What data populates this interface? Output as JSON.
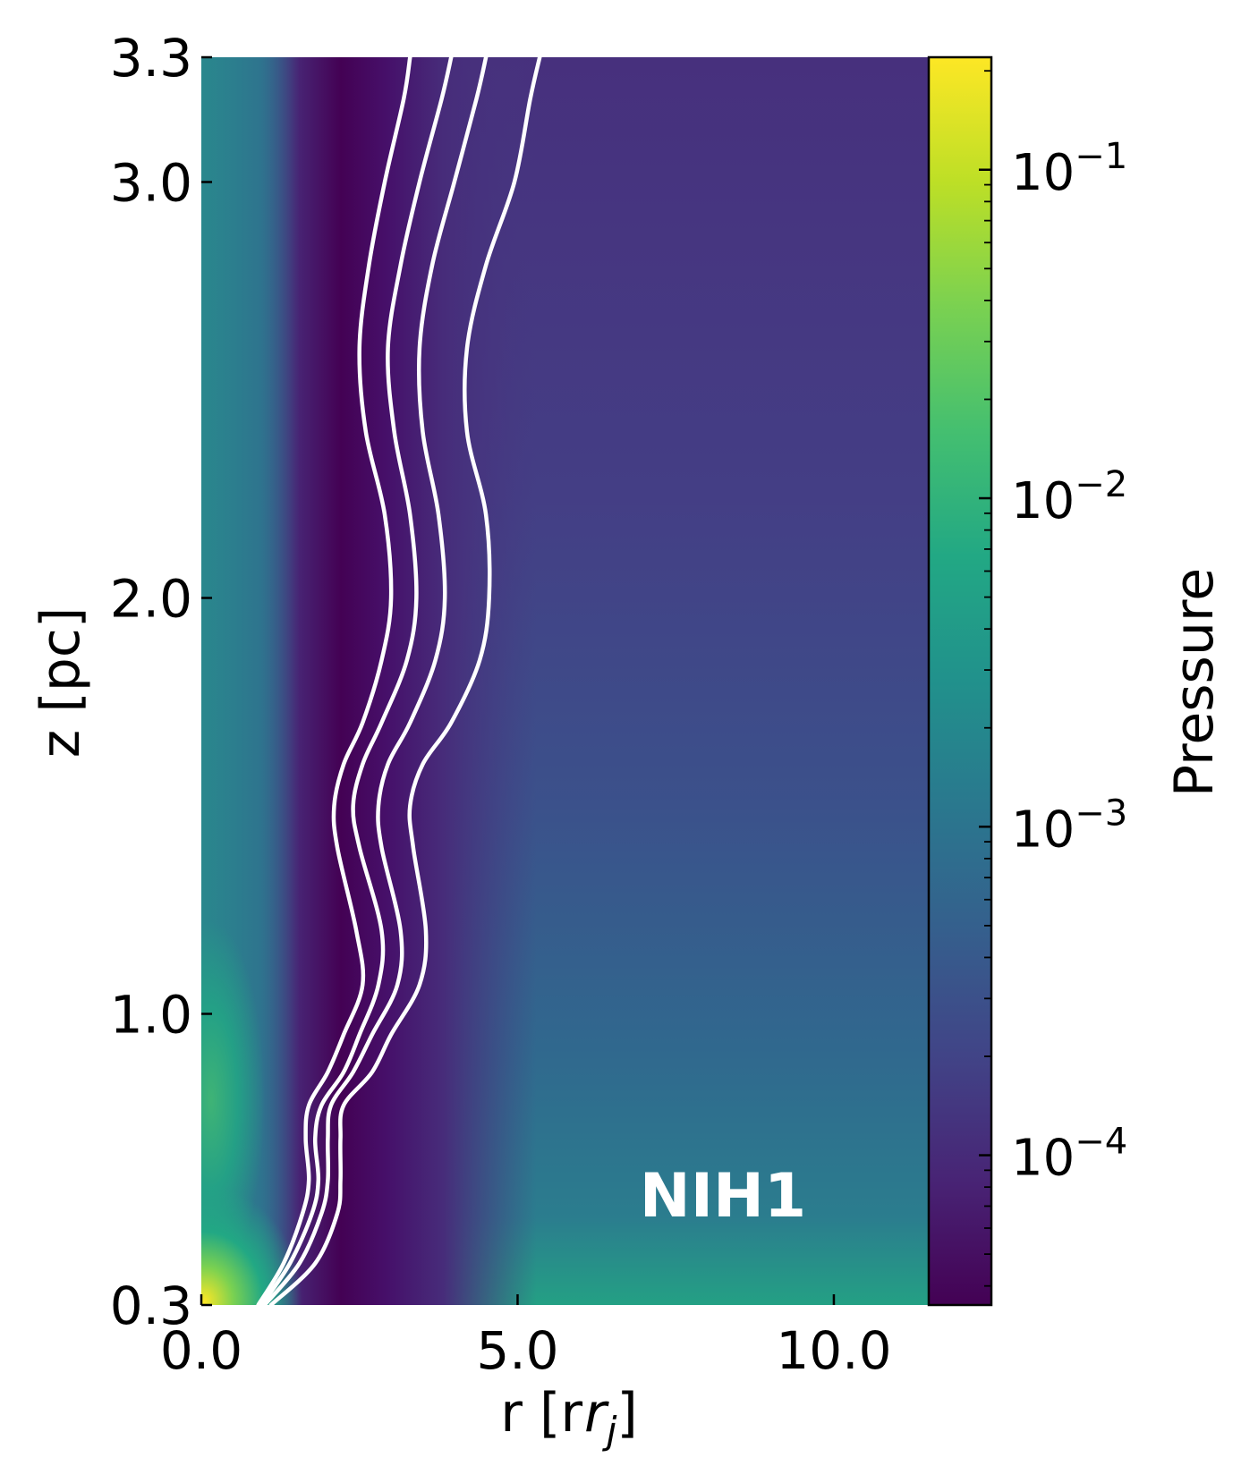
{
  "chart_data": {
    "type": "heatmap",
    "title": "",
    "xlabel": "r [r_j]",
    "ylabel": "z [pc]",
    "xlim": [
      0.0,
      11.5
    ],
    "ylim": [
      0.3,
      3.3
    ],
    "x_ticks": [
      0.0,
      5.0,
      10.0
    ],
    "x_tick_labels": [
      "0.0",
      "5.0",
      "10.0"
    ],
    "y_ticks": [
      0.3,
      1.0,
      2.0,
      3.0,
      3.3
    ],
    "y_tick_labels": [
      "0.3",
      "1.0",
      "2.0",
      "3.0",
      "3.3"
    ],
    "colormap": "viridis",
    "colorbar": {
      "label": "Pressure",
      "scale": "log",
      "range": [
        3.5e-05,
        0.22
      ],
      "ticks": [
        {
          "value": 0.0001,
          "base": "10",
          "exp": "−4"
        },
        {
          "value": 0.001,
          "base": "10",
          "exp": "−3"
        },
        {
          "value": 0.01,
          "base": "10",
          "exp": "−2"
        },
        {
          "value": 0.1,
          "base": "10",
          "exp": "−1"
        }
      ]
    },
    "annotation": "NIH1",
    "contours": {
      "color": "#ffffff",
      "lines": [
        [
          [
            0.9,
            0.3
          ],
          [
            1.3,
            0.4
          ],
          [
            1.6,
            0.52
          ],
          [
            1.7,
            0.6
          ],
          [
            1.65,
            0.7
          ],
          [
            1.7,
            0.78
          ],
          [
            2.0,
            0.86
          ],
          [
            2.25,
            0.95
          ],
          [
            2.55,
            1.07
          ],
          [
            2.45,
            1.2
          ],
          [
            2.15,
            1.4
          ],
          [
            2.1,
            1.5
          ],
          [
            2.25,
            1.6
          ],
          [
            2.55,
            1.7
          ],
          [
            2.85,
            1.85
          ],
          [
            3.0,
            2.0
          ],
          [
            2.9,
            2.2
          ],
          [
            2.6,
            2.4
          ],
          [
            2.5,
            2.6
          ],
          [
            2.65,
            2.8
          ],
          [
            2.9,
            3.0
          ],
          [
            3.2,
            3.2
          ],
          [
            3.3,
            3.3
          ]
        ],
        [
          [
            0.95,
            0.3
          ],
          [
            1.4,
            0.4
          ],
          [
            1.75,
            0.52
          ],
          [
            1.85,
            0.6
          ],
          [
            1.8,
            0.7
          ],
          [
            1.9,
            0.78
          ],
          [
            2.25,
            0.86
          ],
          [
            2.5,
            0.95
          ],
          [
            2.8,
            1.07
          ],
          [
            2.85,
            1.2
          ],
          [
            2.5,
            1.4
          ],
          [
            2.4,
            1.5
          ],
          [
            2.55,
            1.6
          ],
          [
            2.85,
            1.7
          ],
          [
            3.25,
            1.85
          ],
          [
            3.4,
            2.0
          ],
          [
            3.3,
            2.2
          ],
          [
            3.05,
            2.4
          ],
          [
            2.95,
            2.6
          ],
          [
            3.15,
            2.8
          ],
          [
            3.45,
            3.0
          ],
          [
            3.8,
            3.2
          ],
          [
            3.95,
            3.3
          ]
        ],
        [
          [
            1.0,
            0.3
          ],
          [
            1.55,
            0.4
          ],
          [
            1.9,
            0.52
          ],
          [
            2.0,
            0.6
          ],
          [
            2.0,
            0.7
          ],
          [
            2.05,
            0.78
          ],
          [
            2.4,
            0.86
          ],
          [
            2.7,
            0.95
          ],
          [
            3.1,
            1.07
          ],
          [
            3.15,
            1.2
          ],
          [
            2.85,
            1.4
          ],
          [
            2.8,
            1.5
          ],
          [
            2.95,
            1.6
          ],
          [
            3.3,
            1.7
          ],
          [
            3.7,
            1.85
          ],
          [
            3.85,
            2.0
          ],
          [
            3.75,
            2.2
          ],
          [
            3.5,
            2.4
          ],
          [
            3.45,
            2.6
          ],
          [
            3.65,
            2.8
          ],
          [
            4.0,
            3.0
          ],
          [
            4.35,
            3.2
          ],
          [
            4.5,
            3.3
          ]
        ],
        [
          [
            1.1,
            0.3
          ],
          [
            1.8,
            0.4
          ],
          [
            2.15,
            0.52
          ],
          [
            2.2,
            0.6
          ],
          [
            2.2,
            0.7
          ],
          [
            2.25,
            0.78
          ],
          [
            2.7,
            0.86
          ],
          [
            3.0,
            0.95
          ],
          [
            3.45,
            1.07
          ],
          [
            3.55,
            1.2
          ],
          [
            3.35,
            1.4
          ],
          [
            3.3,
            1.5
          ],
          [
            3.5,
            1.6
          ],
          [
            3.95,
            1.7
          ],
          [
            4.4,
            1.85
          ],
          [
            4.55,
            2.0
          ],
          [
            4.5,
            2.2
          ],
          [
            4.2,
            2.4
          ],
          [
            4.2,
            2.6
          ],
          [
            4.5,
            2.8
          ],
          [
            4.95,
            3.0
          ],
          [
            5.2,
            3.2
          ],
          [
            5.35,
            3.3
          ]
        ]
      ]
    }
  }
}
